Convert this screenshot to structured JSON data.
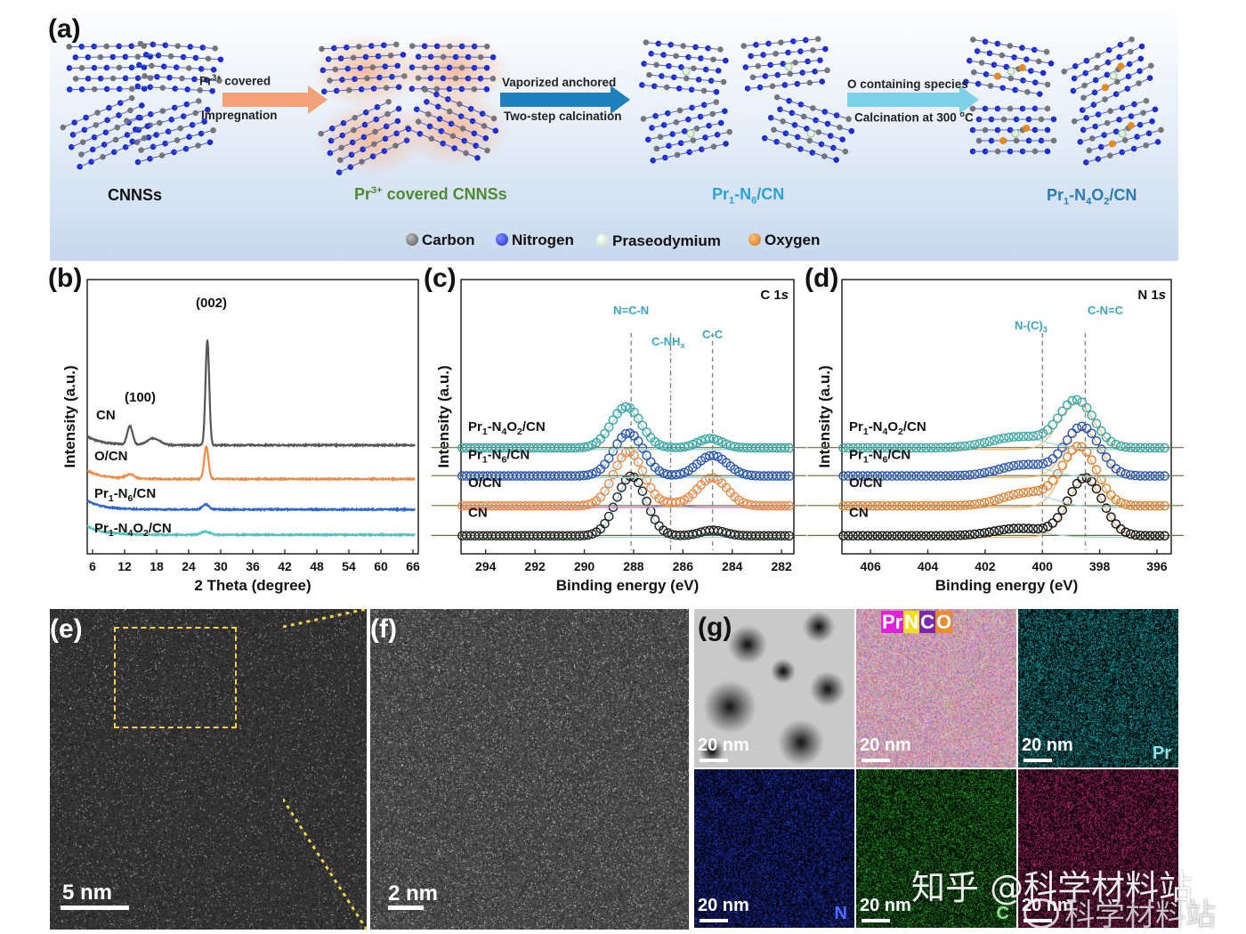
{
  "panels": {
    "a": "(a)",
    "b": "(b)",
    "c": "(c)",
    "d": "(d)",
    "e": "(e)",
    "f": "(f)",
    "g": "(g)"
  },
  "scheme": {
    "stages": [
      {
        "label": "CNNSs",
        "color": "#111111"
      },
      {
        "label_main": "Pr",
        "label_sup": "3+",
        "label_rest": " covered CNNSs",
        "color": "#4f8a2e"
      },
      {
        "label_main": "Pr",
        "sub1": "1",
        "mid": "-N",
        "sub2": "6",
        "rest": "/CN",
        "color": "#29a3d6"
      },
      {
        "label_main": "Pr",
        "sub1": "1",
        "mid": "-N",
        "sub2": "4",
        "mid2": "O",
        "sub3": "2",
        "rest": "/CN",
        "color": "#2a7bb8"
      }
    ],
    "arrows": [
      {
        "top_main": "Pr",
        "top_sup": "3+",
        "top_rest": "  covered",
        "bottom": "Impregnation",
        "color": "#f2a27a"
      },
      {
        "top": "Vaporized anchored",
        "bottom": "Two-step calcination",
        "color": "#1f7fbf"
      },
      {
        "top": "O containing species",
        "bottom_main": "Calcination at 300 ",
        "bottom_sup": "o",
        "bottom_rest": "C",
        "color": "#7fd1e8"
      }
    ],
    "legend": [
      {
        "label": "Carbon",
        "color": "#6b6b6b"
      },
      {
        "label": "Nitrogen",
        "color": "#1b2fd1"
      },
      {
        "label": "Praseodymium",
        "color": "#d8eed8"
      },
      {
        "label": "Oxygen",
        "color": "#e68a1f"
      }
    ]
  },
  "chart_data": [
    {
      "type": "line",
      "panel": "(b)",
      "xlabel": "2 Theta (degree)",
      "ylabel": "Intensity (a.u.)",
      "xlim": [
        5,
        67
      ],
      "xticks": [
        6,
        12,
        18,
        24,
        30,
        36,
        42,
        48,
        54,
        60,
        66
      ],
      "annotations": [
        "(100)",
        "(002)"
      ],
      "series": [
        {
          "name": "CN",
          "color": "#555555",
          "offset": 3.0,
          "peaks": [
            [
              13,
              0.55,
              0.5
            ],
            [
              17.5,
              0.2,
              1.2
            ],
            [
              27.5,
              3.1,
              0.35
            ]
          ]
        },
        {
          "name": "O/CN",
          "color": "#ee8a45",
          "offset": 2.0,
          "peaks": [
            [
              13,
              0.12,
              0.8
            ],
            [
              27.3,
              0.95,
              0.4
            ]
          ]
        },
        {
          "name_parts": [
            "Pr",
            "1",
            "-N",
            "6",
            "/CN"
          ],
          "color": "#2a66cc",
          "offset": 1.1,
          "peaks": [
            [
              27.2,
              0.15,
              0.6
            ]
          ]
        },
        {
          "name_parts": [
            "Pr",
            "1",
            "-N",
            "4",
            "O",
            "2",
            "/CN"
          ],
          "color": "#4ec2c2",
          "offset": 0.35,
          "peaks": [
            [
              27.2,
              0.1,
              0.8
            ]
          ]
        }
      ]
    },
    {
      "type": "scatter",
      "panel": "(c)",
      "title_main": "C 1",
      "title_ital": "s",
      "xlabel": "Binding energy (eV)",
      "ylabel": "Intensity (a.u.)",
      "xlim": [
        295,
        281.5
      ],
      "xticks": [
        294,
        292,
        290,
        288,
        286,
        284,
        282
      ],
      "peak_labels": [
        "N=C-N",
        "C-NH",
        "x",
        "C-C"
      ],
      "ref_lines": [
        288.1,
        286.5,
        284.8
      ],
      "series": [
        {
          "name": "CN",
          "color": "#222222",
          "peaks": [
            [
              288.1,
              1.6,
              0.6
            ],
            [
              284.8,
              0.15,
              0.5
            ]
          ]
        },
        {
          "name": "O/CN",
          "color": "#ee8a45",
          "peaks": [
            [
              288.2,
              1.45,
              0.6
            ],
            [
              284.8,
              0.75,
              0.6
            ],
            [
              286.4,
              0.05,
              0.5
            ]
          ]
        },
        {
          "name_parts": [
            "Pr",
            "1",
            "-N",
            "6",
            "/CN"
          ],
          "color": "#2a55b0",
          "peaks": [
            [
              288.2,
              1.15,
              0.6
            ],
            [
              284.8,
              0.55,
              0.6
            ]
          ]
        },
        {
          "name_parts": [
            "Pr",
            "1",
            "-N",
            "4",
            "O",
            "2",
            "/CN"
          ],
          "color": "#3aa6a6",
          "peaks": [
            [
              288.3,
              1.1,
              0.6
            ],
            [
              284.9,
              0.25,
              0.5
            ]
          ]
        }
      ]
    },
    {
      "type": "scatter",
      "panel": "(d)",
      "title_main": "N 1",
      "title_ital": "s",
      "xlabel": "Binding energy (eV)",
      "ylabel": "Intensity (a.u.)",
      "xlim": [
        407,
        395.5
      ],
      "xticks": [
        406,
        404,
        402,
        400,
        398,
        396
      ],
      "peak_labels": [
        "N-(C)",
        "3",
        "C-N=C"
      ],
      "ref_lines": [
        400.0,
        398.5
      ],
      "series": [
        {
          "name": "CN",
          "color": "#111111",
          "peaks": [
            [
              398.5,
              1.55,
              0.6
            ],
            [
              400.8,
              0.2,
              0.9
            ]
          ]
        },
        {
          "name": "O/CN",
          "color": "#e08030",
          "peaks": [
            [
              398.7,
              1.55,
              0.6
            ],
            [
              400.5,
              0.35,
              0.9
            ]
          ]
        },
        {
          "name_parts": [
            "Pr",
            "1",
            "-N",
            "6",
            "/CN"
          ],
          "color": "#2a55b0",
          "peaks": [
            [
              398.6,
              1.3,
              0.6
            ],
            [
              400.6,
              0.3,
              0.9
            ]
          ]
        },
        {
          "name_parts": [
            "Pr",
            "1",
            "-N",
            "4",
            "O",
            "2",
            "/CN"
          ],
          "color": "#3aa6a6",
          "peaks": [
            [
              398.8,
              1.25,
              0.6
            ],
            [
              400.8,
              0.3,
              1.0
            ]
          ]
        }
      ]
    }
  ],
  "em": {
    "e_scale": "5 nm",
    "f_scale": "2 nm",
    "g_tiles": [
      {
        "scale": "20 nm",
        "element": "",
        "color": "#9a9a9a",
        "type": "haadf"
      },
      {
        "scale": "20 nm",
        "element": "",
        "color": "#b88",
        "type": "overlay",
        "overlay_letters": [
          {
            "t": "Pr",
            "c": "#e021d8"
          },
          {
            "t": "N",
            "c": "#ede01a"
          },
          {
            "t": "C",
            "c": "#7b2ab0"
          },
          {
            "t": "O",
            "c": "#ee8a2e"
          }
        ]
      },
      {
        "scale": "20 nm",
        "element": "Pr",
        "color": "#19b3b8",
        "type": "map"
      },
      {
        "scale": "20 nm",
        "element": "N",
        "color": "#2339c9",
        "type": "map"
      },
      {
        "scale": "20 nm",
        "element": "C",
        "color": "#27a82a",
        "type": "map"
      },
      {
        "scale": "20 nm",
        "element": "",
        "color": "#c42a78",
        "type": "map"
      }
    ]
  },
  "watermark": {
    "zhihu": "知乎 @科学材料站",
    "weibo": "科学材料站"
  }
}
